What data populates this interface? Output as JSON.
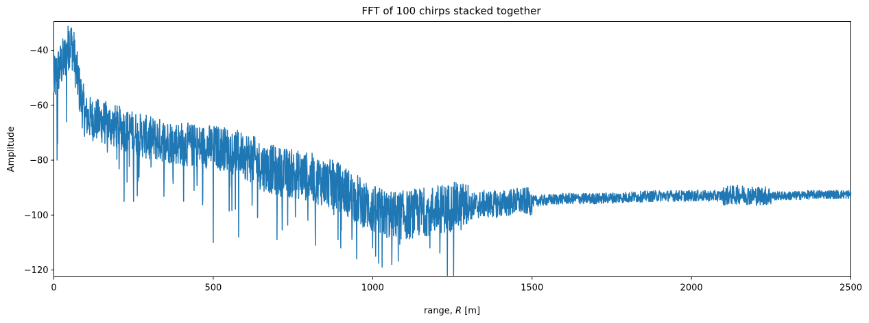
{
  "chart_data": {
    "type": "line",
    "title": "FFT of 100 chirps stacked together",
    "xlabel_prefix": "range, ",
    "xlabel_var": "R",
    "xlabel_suffix": " [m]",
    "ylabel": "Amplitude",
    "xlim": [
      0,
      2500
    ],
    "ylim": [
      -122.5,
      -29.5
    ],
    "xticks": [
      0,
      500,
      1000,
      1500,
      2000,
      2500
    ],
    "xtick_labels": [
      "0",
      "500",
      "1000",
      "1500",
      "2000",
      "2500"
    ],
    "yticks": [
      -40,
      -60,
      -80,
      -100,
      -120
    ],
    "ytick_labels": [
      "−40",
      "−60",
      "−80",
      "−100",
      "−120"
    ],
    "grid": false,
    "line_color": "#1f77b4",
    "series": [
      {
        "x": [
          0,
          5,
          10,
          20,
          30,
          40,
          50,
          60,
          70,
          80,
          90,
          100,
          120,
          150,
          200,
          250,
          300,
          350,
          400,
          450,
          500,
          550,
          600,
          650,
          700,
          750,
          800,
          850,
          900,
          950,
          1000,
          1050,
          1100,
          1150,
          1200,
          1250,
          1300,
          1350,
          1400,
          1450,
          1500,
          1600,
          1700,
          1800,
          1900,
          2000,
          2050,
          2100,
          2150,
          2200,
          2250,
          2300,
          2400,
          2500
        ],
        "y": [
          -52,
          -50,
          -48,
          -46,
          -44,
          -41,
          -37,
          -39,
          -47,
          -54,
          -60,
          -64,
          -65,
          -66,
          -68,
          -70,
          -72,
          -73,
          -74,
          -75,
          -75,
          -76,
          -78,
          -82,
          -84,
          -85,
          -86,
          -88,
          -90,
          -94,
          -98,
          -100,
          -100,
          -99,
          -98,
          -97,
          -97,
          -96,
          -96,
          -95,
          -95,
          -94,
          -94,
          -93.5,
          -93,
          -93,
          -93,
          -93,
          -92.5,
          -93,
          -93,
          -93,
          -92.5,
          -92.5
        ]
      },
      {
        "name": "",
        "x": [
          10,
          12,
          40,
          48,
          220,
          230,
          250,
          262,
          500,
          580,
          700,
          820,
          900,
          950,
          1000,
          1030,
          1060,
          1180
        ],
        "y": [
          -80,
          -74,
          -66,
          -33,
          -95,
          -88,
          -95,
          -93,
          -110,
          -108,
          -109,
          -111,
          -112,
          -116,
          -112,
          -119,
          -118,
          -112
        ]
      }
    ]
  }
}
